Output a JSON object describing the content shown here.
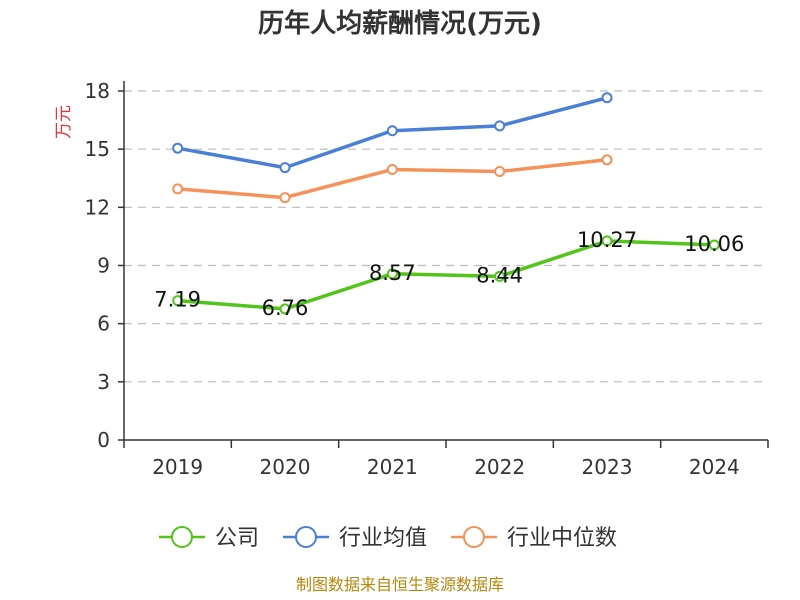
{
  "chart_data": {
    "type": "line",
    "title": "历年人均薪酬情况(万元)",
    "xlabel": "",
    "ylabel": "万元",
    "categories": [
      "2019",
      "2020",
      "2021",
      "2022",
      "2023",
      "2024"
    ],
    "ylim": [
      0,
      18
    ],
    "yticks": [
      "0",
      "3",
      "6",
      "9",
      "12",
      "15",
      "18"
    ],
    "grid": true,
    "legend_position": "bottom",
    "series": [
      {
        "name": "公司",
        "color": "#52c41a",
        "values": [
          7.19,
          6.76,
          8.57,
          8.44,
          10.27,
          10.06
        ],
        "labels": [
          "7.19",
          "6.76",
          "8.57",
          "8.44",
          "10.27",
          "10.06"
        ]
      },
      {
        "name": "行业均值",
        "color": "#4a7fd6",
        "values": [
          15.05,
          14.05,
          15.95,
          16.2,
          17.65,
          null
        ],
        "labels": []
      },
      {
        "name": "行业中位数",
        "color": "#f5925a",
        "values": [
          12.95,
          12.5,
          13.95,
          13.85,
          14.45,
          null
        ],
        "labels": []
      }
    ],
    "source": "制图数据来自恒生聚源数据库"
  }
}
